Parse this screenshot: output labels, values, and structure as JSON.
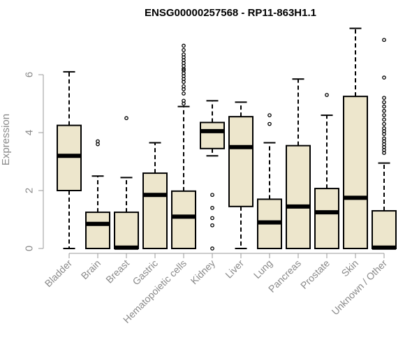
{
  "chart_data": {
    "type": "boxplot",
    "title": "ENSG00000257568 - RP11-863H1.1",
    "xlabel": "",
    "ylabel": "Expression",
    "ylim": [
      0,
      7.7
    ],
    "yticks": [
      0,
      2,
      4,
      6
    ],
    "ytick_labels": [
      "0",
      "2",
      "4",
      "6"
    ],
    "colors": {
      "box_fill": "#ede6cc",
      "stroke": "#000000",
      "axis_text": "#8a8a8a"
    },
    "categories": [
      "Bladder",
      "Brain",
      "Breast",
      "Gastric",
      "Hematopoietic cells",
      "Kidney",
      "Liver",
      "Lung",
      "Pancreas",
      "Prostate",
      "Skin",
      "Unknown / Other"
    ],
    "boxes": [
      {
        "name": "Bladder",
        "whisker_low": 0,
        "q1": 2.0,
        "median": 3.2,
        "q3": 4.25,
        "whisker_high": 6.1,
        "outliers": []
      },
      {
        "name": "Brain",
        "whisker_low": 0,
        "q1": 0,
        "median": 0.85,
        "q3": 1.25,
        "whisker_high": 2.5,
        "outliers": [
          3.6,
          3.7
        ]
      },
      {
        "name": "Breast",
        "whisker_low": 0,
        "q1": 0,
        "median": 0.03,
        "q3": 1.25,
        "whisker_high": 2.45,
        "outliers": [
          4.5
        ]
      },
      {
        "name": "Gastric",
        "whisker_low": 0,
        "q1": 0,
        "median": 1.85,
        "q3": 2.6,
        "whisker_high": 3.65,
        "outliers": []
      },
      {
        "name": "Hematopoietic cells",
        "whisker_low": 0,
        "q1": 0,
        "median": 1.1,
        "q3": 1.98,
        "whisker_high": 4.9,
        "outliers": [
          5.0,
          5.1,
          5.35,
          5.5,
          5.6,
          5.75,
          5.85,
          5.95,
          6.05,
          6.15,
          6.2,
          6.3,
          6.4,
          6.5,
          6.6,
          6.7,
          6.85,
          7.0
        ]
      },
      {
        "name": "Kidney",
        "whisker_low": 3.2,
        "q1": 3.45,
        "median": 4.05,
        "q3": 4.35,
        "whisker_high": 5.1,
        "outliers": [
          0,
          0.8,
          1.05,
          1.4,
          1.85
        ]
      },
      {
        "name": "Liver",
        "whisker_low": 0,
        "q1": 1.45,
        "median": 3.5,
        "q3": 4.55,
        "whisker_high": 5.05,
        "outliers": []
      },
      {
        "name": "Lung",
        "whisker_low": 0,
        "q1": 0,
        "median": 0.9,
        "q3": 1.7,
        "whisker_high": 3.65,
        "outliers": [
          4.3,
          4.6
        ]
      },
      {
        "name": "Pancreas",
        "whisker_low": 0,
        "q1": 0,
        "median": 1.45,
        "q3": 3.55,
        "whisker_high": 5.85,
        "outliers": []
      },
      {
        "name": "Prostate",
        "whisker_low": 0,
        "q1": 0,
        "median": 1.25,
        "q3": 2.07,
        "whisker_high": 4.6,
        "outliers": [
          5.3
        ]
      },
      {
        "name": "Skin",
        "whisker_low": 0,
        "q1": 0,
        "median": 1.75,
        "q3": 5.25,
        "whisker_high": 7.6,
        "outliers": []
      },
      {
        "name": "Unknown / Other",
        "whisker_low": 0,
        "q1": 0,
        "median": 0.03,
        "q3": 1.3,
        "whisker_high": 2.95,
        "outliers": [
          3.3,
          3.4,
          3.5,
          3.6,
          3.7,
          3.8,
          3.95,
          4.05,
          4.15,
          4.3,
          4.45,
          4.6,
          4.75,
          4.9,
          5.05,
          5.2,
          5.9,
          7.2
        ]
      }
    ]
  }
}
